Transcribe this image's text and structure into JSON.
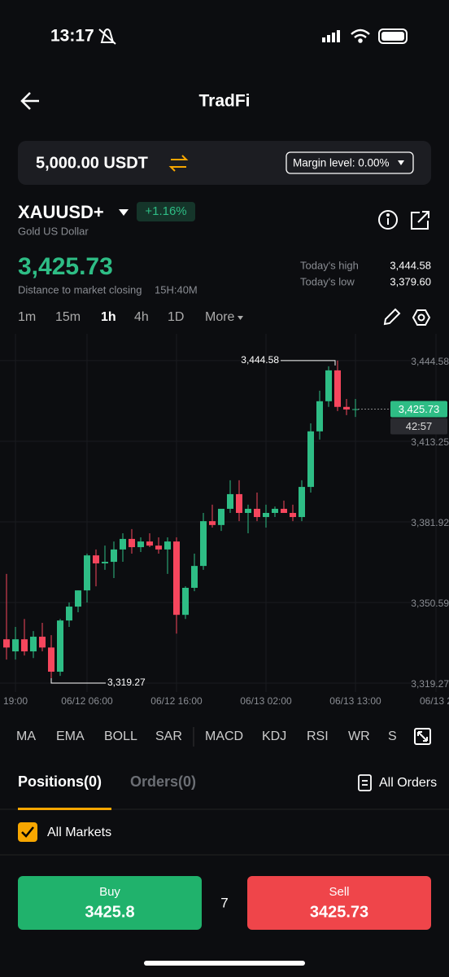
{
  "status_bar": {
    "time": "13:17"
  },
  "header": {
    "title": "TradFi"
  },
  "account": {
    "balance": "5,000.00 USDT",
    "margin_level": "Margin level: 0.00%"
  },
  "instrument": {
    "symbol": "XAUUSD+",
    "change": "+1.16%",
    "name": "Gold US Dollar",
    "price": "3,425.73",
    "closing_label": "Distance to market closing",
    "closing_time": "15H:40M",
    "high_label": "Today's high",
    "high": "3,444.58",
    "low_label": "Today's low",
    "low": "3,379.60"
  },
  "intervals": [
    "1m",
    "15m",
    "1h",
    "4h",
    "1D",
    "More"
  ],
  "chart_data": {
    "type": "candlestick",
    "ylim": [
      3315.8,
      3455.0
    ],
    "yticks": [
      {
        "value": 3444.58,
        "label": "3,444.58"
      },
      {
        "value": 3413.25,
        "label": "3,413.25"
      },
      {
        "value": 3381.92,
        "label": "3,381.92"
      },
      {
        "value": 3350.59,
        "label": "3,350.59"
      },
      {
        "value": 3319.27,
        "label": "3,319.27"
      }
    ],
    "xticks": [
      {
        "value": 1,
        "label": "19:00"
      },
      {
        "value": 9,
        "label": "06/12 06:00"
      },
      {
        "value": 19,
        "label": "06/12 16:00"
      },
      {
        "value": 29,
        "label": "06/13 02:00"
      },
      {
        "value": 39,
        "label": "06/13 13:00"
      },
      {
        "value": 48,
        "label": "06/13 2"
      }
    ],
    "up_color": "#2ebd85",
    "down_color": "#f6465d",
    "candles": [
      [
        3336.3,
        3361.7,
        3328.4,
        3333.1
      ],
      [
        3331.6,
        3341.1,
        3328.4,
        3336.3
      ],
      [
        3336.3,
        3344.2,
        3330.0,
        3331.6
      ],
      [
        3331.6,
        3339.5,
        3329.0,
        3337.3
      ],
      [
        3337.3,
        3342.7,
        3331.6,
        3333.1
      ],
      [
        3333.1,
        3337.9,
        3319.27,
        3323.7
      ],
      [
        3323.7,
        3344.2,
        3322.1,
        3343.6
      ],
      [
        3343.6,
        3350.6,
        3341.1,
        3349.0
      ],
      [
        3349.0,
        3355.3,
        3346.8,
        3355.3
      ],
      [
        3355.3,
        3369.6,
        3350.6,
        3368.9
      ],
      [
        3368.9,
        3371.2,
        3356.9,
        3365.8
      ],
      [
        3365.8,
        3372.7,
        3363.3,
        3366.4
      ],
      [
        3366.4,
        3374.3,
        3360.1,
        3371.2
      ],
      [
        3371.2,
        3377.5,
        3366.4,
        3375.3
      ],
      [
        3375.3,
        3379.1,
        3369.6,
        3372.1
      ],
      [
        3372.1,
        3375.9,
        3370.2,
        3374.3
      ],
      [
        3374.3,
        3377.5,
        3372.1,
        3372.7
      ],
      [
        3372.7,
        3375.9,
        3369.6,
        3371.2
      ],
      [
        3371.2,
        3375.9,
        3361.7,
        3374.3
      ],
      [
        3374.3,
        3375.9,
        3338.5,
        3345.8
      ],
      [
        3345.8,
        3356.9,
        3344.2,
        3356.3
      ],
      [
        3356.3,
        3369.6,
        3355.0,
        3364.8
      ],
      [
        3364.8,
        3385.4,
        3363.3,
        3382.2
      ],
      [
        3382.2,
        3388.6,
        3379.7,
        3380.7
      ],
      [
        3380.7,
        3387.0,
        3378.4,
        3387.0
      ],
      [
        3387.0,
        3398.1,
        3385.4,
        3392.7
      ],
      [
        3392.7,
        3398.1,
        3382.2,
        3385.4
      ],
      [
        3385.4,
        3388.6,
        3377.5,
        3387.0
      ],
      [
        3387.0,
        3393.3,
        3382.2,
        3383.8
      ],
      [
        3383.8,
        3388.6,
        3379.7,
        3385.4
      ],
      [
        3385.4,
        3387.9,
        3383.8,
        3387.0
      ],
      [
        3387.0,
        3390.2,
        3385.4,
        3385.4
      ],
      [
        3385.4,
        3388.6,
        3382.2,
        3383.8
      ],
      [
        3383.8,
        3398.1,
        3382.2,
        3395.5
      ],
      [
        3395.5,
        3420.2,
        3393.3,
        3417.1
      ],
      [
        3417.1,
        3432.9,
        3413.9,
        3428.8
      ],
      [
        3428.8,
        3442.4,
        3426.6,
        3440.8
      ],
      [
        3440.8,
        3444.58,
        3425.0,
        3426.6
      ],
      [
        3426.6,
        3429.7,
        3423.4,
        3425.6
      ],
      [
        3425.6,
        3429.7,
        3422.7,
        3425.73
      ]
    ],
    "annotations": [
      {
        "value": 3444.58,
        "label": "3,444.58"
      },
      {
        "value": 3319.27,
        "label": "3,319.27"
      }
    ],
    "last_price": {
      "value": 3425.73,
      "label": "3,425.73"
    },
    "countdown": "42:57"
  },
  "indicators": [
    "MA",
    "EMA",
    "BOLL",
    "SAR",
    "MACD",
    "KDJ",
    "RSI",
    "WR",
    "S"
  ],
  "tabs": {
    "positions": "Positions(0)",
    "orders": "Orders(0)",
    "all_orders": "All Orders",
    "filter": "All Markets"
  },
  "footer": {
    "buy_label": "Buy",
    "buy_price": "3425.8",
    "spread": "7",
    "sell_label": "Sell",
    "sell_price": "3425.73"
  }
}
